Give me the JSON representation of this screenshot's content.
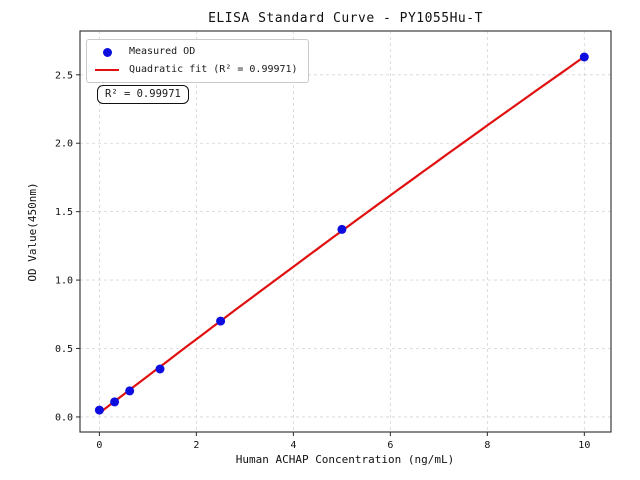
{
  "chart_data": {
    "type": "scatter",
    "title": "ELISA Standard Curve - PY1055Hu-T",
    "xlabel": "Human ACHAP Concentration (ng/mL)",
    "ylabel": "OD Value(450nm)",
    "annotation": "R² = 0.99971",
    "xlim": [
      -0.4,
      10.55
    ],
    "ylim": [
      -0.11,
      2.82
    ],
    "xticks": [
      0,
      2,
      4,
      6,
      8,
      10
    ],
    "xtick_labels": [
      "0",
      "2",
      "4",
      "6",
      "8",
      "10"
    ],
    "yticks": [
      0,
      0.5,
      1,
      1.5,
      2,
      2.5
    ],
    "ytick_labels": [
      "0.0",
      "0.5",
      "1.0",
      "1.5",
      "2.0",
      "2.5"
    ],
    "grid": true,
    "grid_color": "#d4d4d4",
    "axis_color": "#2b2b2b",
    "legend_position": "upper-left",
    "series": [
      {
        "name": "Measured OD",
        "kind": "scatter",
        "color": "#0d0de0",
        "x": [
          0,
          0.313,
          0.625,
          1.25,
          2.5,
          5,
          10
        ],
        "y": [
          0.05,
          0.11,
          0.19,
          0.35,
          0.7,
          1.37,
          2.63
        ]
      },
      {
        "name": "Quadratic fit (R² = 0.99971)",
        "kind": "quadratic-fit",
        "color": "#e01010",
        "r_squared": 0.99971
      }
    ]
  }
}
